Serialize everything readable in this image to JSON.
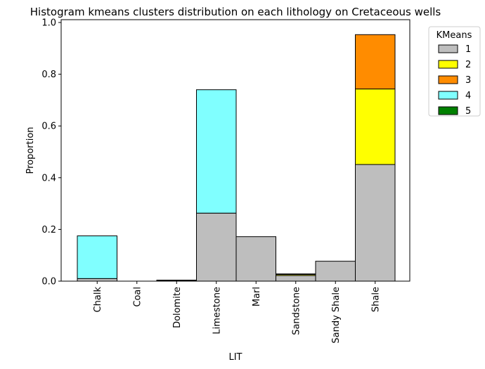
{
  "chart_data": {
    "type": "bar",
    "stacked": true,
    "title": "Histogram kmeans clusters distribution on each lithology on Cretaceous wells",
    "xlabel": "LIT",
    "ylabel": "Proportion",
    "ylim": [
      0,
      1.0
    ],
    "yticks": [
      "0.0",
      "0.2",
      "0.4",
      "0.6",
      "0.8",
      "1.0"
    ],
    "categories": [
      "Chalk",
      "Coal",
      "Dolomite",
      "Limestone",
      "Marl",
      "Sandstone",
      "Sandy Shale",
      "Shale"
    ],
    "series": [
      {
        "name": "1",
        "color": "#bebebe",
        "values": [
          0.01,
          0.0,
          0.003,
          0.263,
          0.172,
          0.022,
          0.077,
          0.451
        ]
      },
      {
        "name": "2",
        "color": "#ffff00",
        "values": [
          0.0,
          0.0,
          0.0,
          0.0,
          0.0,
          0.004,
          0.0,
          0.292
        ]
      },
      {
        "name": "3",
        "color": "#ff8c00",
        "values": [
          0.0,
          0.0,
          0.0,
          0.0,
          0.0,
          0.002,
          0.0,
          0.21
        ]
      },
      {
        "name": "4",
        "color": "#80ffff",
        "values": [
          0.165,
          0.0,
          0.0,
          0.477,
          0.0,
          0.0,
          0.0,
          0.0
        ]
      },
      {
        "name": "5",
        "color": "#008000",
        "values": [
          0.0,
          0.0,
          0.001,
          0.0,
          0.0,
          0.0,
          0.0,
          0.0
        ]
      }
    ],
    "legend": {
      "title": "KMeans",
      "placement": "outside-right"
    },
    "grid": false
  }
}
